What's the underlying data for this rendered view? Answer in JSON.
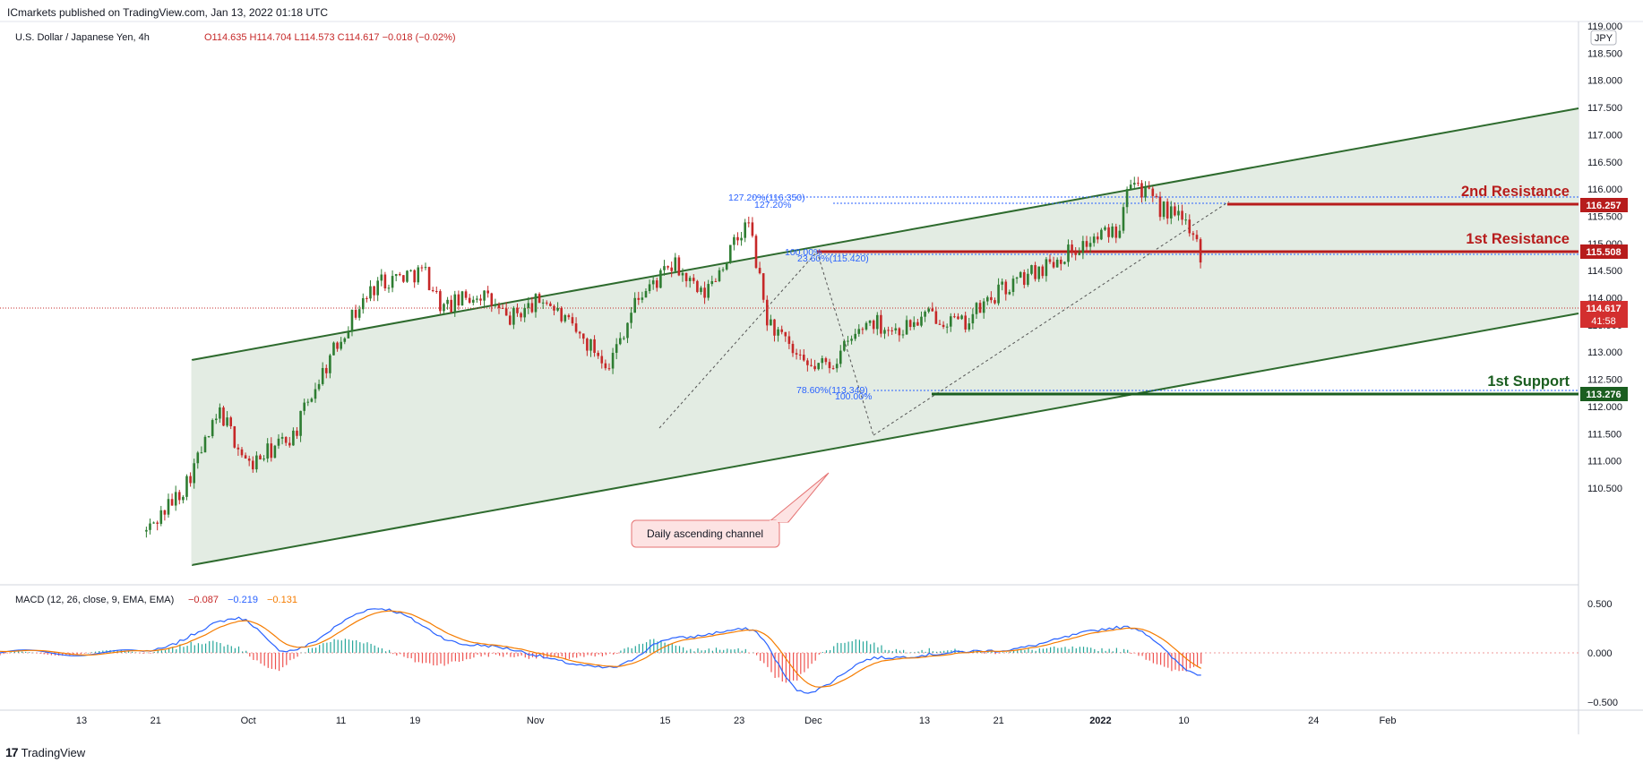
{
  "header": {
    "credit": "ICmarkets published on TradingView.com, Jan 13, 2022 01:18 UTC"
  },
  "footer": {
    "logo_mark": "17",
    "logo_text": "TradingView"
  },
  "legend": {
    "symbol": "U.S. Dollar / Japanese Yen, 4h",
    "ohlc": "O114.635  H114.704  L114.573  C114.617  −0.018 (−0.02%)"
  },
  "macd_legend": {
    "name": "MACD (12, 26, close, 9, EMA, EMA)",
    "v1": "−0.087",
    "v2": "−0.219",
    "v3": "−0.131"
  },
  "currency_box": "JPY",
  "price_axis": [
    "119.000",
    "118.500",
    "118.000",
    "117.500",
    "117.000",
    "116.500",
    "116.000",
    "115.500",
    "115.000",
    "114.500",
    "114.000",
    "113.500",
    "113.000",
    "112.500",
    "112.000",
    "111.500",
    "111.000",
    "110.500"
  ],
  "macd_axis": [
    "0.500",
    "0.000",
    "−0.500"
  ],
  "time_axis": [
    "13",
    "21",
    "Oct",
    "11",
    "19",
    "Nov",
    "15",
    "23",
    "Dec",
    "13",
    "21",
    "2022",
    "10",
    "24",
    "Feb"
  ],
  "levels": {
    "r2": {
      "label": "2nd Resistance",
      "price": "116.257"
    },
    "r1": {
      "label": "1st Resistance",
      "price": "115.508"
    },
    "s1": {
      "label": "1st Support",
      "price": "113.276"
    },
    "current": {
      "price": "114.617",
      "timer": "41:58"
    }
  },
  "fib_labels": {
    "f1": "127.20%(116.350)",
    "f2": "127.20%",
    "f3": "100.00%",
    "f4": "23.60%(115.420)",
    "f5": "78.60%(113.349)",
    "f6": "100.00%"
  },
  "annotation": "Daily ascending channel",
  "colors": {
    "up": "#26a69a",
    "up_candle": "#2e7d32",
    "down": "#c62828",
    "channel": "#2e6b2e",
    "channel_fill": "#e3ece3",
    "resistance": "#b71c1c",
    "support": "#1b5e20",
    "fib": "#2962ff",
    "macd_line": "#2962ff",
    "signal_line": "#f57c00"
  },
  "chart_data": {
    "type": "candlestick",
    "title": "U.S. Dollar / Japanese Yen, 4h",
    "y_range": [
      110.3,
      119.0
    ],
    "macd_range": [
      -0.5,
      0.5
    ],
    "x_ticks": [
      "13",
      "21",
      "Oct",
      "11",
      "19",
      "Nov",
      "15",
      "23",
      "Dec",
      "13",
      "21",
      "2022",
      "10",
      "24",
      "Feb"
    ],
    "price_path": [
      [
        "2021-09-20",
        109.7
      ],
      [
        "2021-09-24",
        110.5
      ],
      [
        "2021-09-28",
        111.9
      ],
      [
        "2021-10-01",
        110.9
      ],
      [
        "2021-10-06",
        111.5
      ],
      [
        "2021-10-08",
        112.3
      ],
      [
        "2021-10-12",
        113.6
      ],
      [
        "2021-10-15",
        114.3
      ],
      [
        "2021-10-20",
        114.5
      ],
      [
        "2021-10-22",
        113.8
      ],
      [
        "2021-10-26",
        114.1
      ],
      [
        "2021-10-29",
        113.6
      ],
      [
        "2021-11-02",
        114.0
      ],
      [
        "2021-11-05",
        113.4
      ],
      [
        "2021-11-09",
        112.8
      ],
      [
        "2021-11-12",
        114.0
      ],
      [
        "2021-11-16",
        114.6
      ],
      [
        "2021-11-19",
        114.0
      ],
      [
        "2021-11-24",
        115.4
      ],
      [
        "2021-11-26",
        113.6
      ],
      [
        "2021-11-30",
        112.7
      ],
      [
        "2021-12-03",
        112.8
      ],
      [
        "2021-12-07",
        113.6
      ],
      [
        "2021-12-10",
        113.4
      ],
      [
        "2021-12-14",
        113.7
      ],
      [
        "2021-12-17",
        113.5
      ],
      [
        "2021-12-21",
        114.1
      ],
      [
        "2021-12-24",
        114.4
      ],
      [
        "2021-12-28",
        114.8
      ],
      [
        "2022-01-03",
        115.3
      ],
      [
        "2022-01-04",
        116.3
      ],
      [
        "2022-01-07",
        115.7
      ],
      [
        "2022-01-11",
        115.3
      ],
      [
        "2022-01-12",
        114.6
      ]
    ],
    "macd_path": [
      [
        "2021-09-20",
        0.02
      ],
      [
        "2021-09-30",
        0.35
      ],
      [
        "2021-10-05",
        0.02
      ],
      [
        "2021-10-15",
        0.45
      ],
      [
        "2021-10-25",
        0.08
      ],
      [
        "2021-11-09",
        -0.15
      ],
      [
        "2021-11-16",
        0.15
      ],
      [
        "2021-11-24",
        0.24
      ],
      [
        "2021-11-30",
        -0.4
      ],
      [
        "2021-12-08",
        -0.05
      ],
      [
        "2021-12-20",
        0.02
      ],
      [
        "2022-01-04",
        0.26
      ],
      [
        "2022-01-12",
        -0.22
      ]
    ],
    "support_resistance": [
      {
        "name": "2nd Resistance",
        "value": 116.257
      },
      {
        "name": "1st Resistance",
        "value": 115.508
      },
      {
        "name": "1st Support",
        "value": 113.276
      }
    ]
  }
}
